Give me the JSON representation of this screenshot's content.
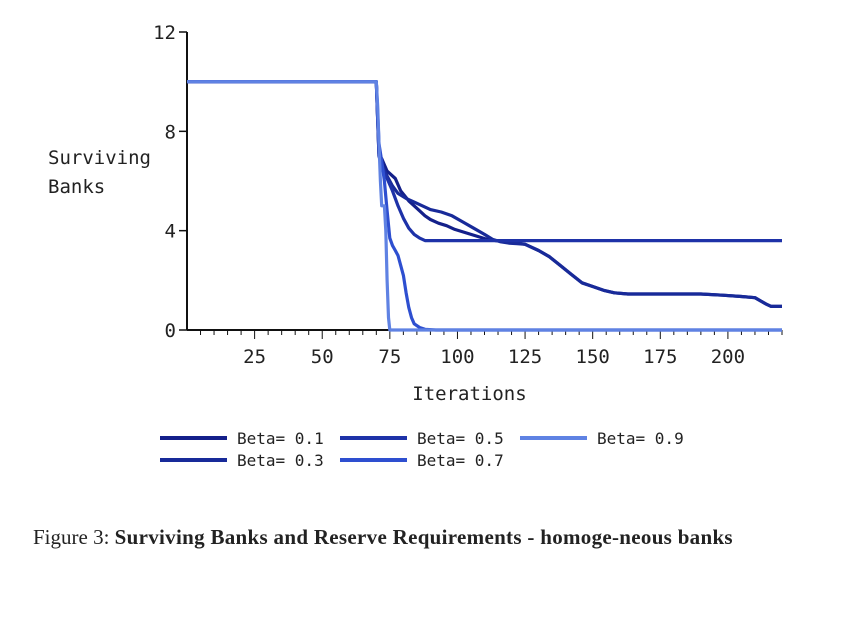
{
  "chart_data": {
    "type": "line",
    "xlabel": "Iterations",
    "ylabel_lines": [
      "Surviving",
      "Banks"
    ],
    "xlim": [
      0,
      220
    ],
    "ylim": [
      0,
      12
    ],
    "x_ticks": [
      25,
      50,
      75,
      100,
      125,
      150,
      175,
      200
    ],
    "y_ticks": [
      0,
      4,
      8,
      12
    ],
    "grid": false,
    "legend_position": "bottom",
    "series": [
      {
        "name": "Beta= 0.1",
        "color": "#14208a",
        "points": [
          [
            0,
            10
          ],
          [
            70,
            10
          ],
          [
            71,
            7
          ],
          [
            72,
            6.9
          ],
          [
            74,
            6.4
          ],
          [
            77,
            6.1
          ],
          [
            79,
            5.6
          ],
          [
            82,
            5.2
          ],
          [
            85,
            4.9
          ],
          [
            88,
            4.6
          ],
          [
            90,
            4.45
          ],
          [
            93,
            4.3
          ],
          [
            96,
            4.2
          ],
          [
            99,
            4.05
          ],
          [
            102,
            3.95
          ],
          [
            105,
            3.85
          ],
          [
            108,
            3.75
          ],
          [
            111,
            3.65
          ],
          [
            114,
            3.6
          ],
          [
            117,
            3.58
          ],
          [
            120,
            3.55
          ],
          [
            125,
            3.45
          ],
          [
            130,
            3.2
          ],
          [
            134,
            2.95
          ],
          [
            138,
            2.6
          ],
          [
            142,
            2.25
          ],
          [
            146,
            1.9
          ],
          [
            150,
            1.75
          ],
          [
            154,
            1.6
          ],
          [
            158,
            1.5
          ],
          [
            163,
            1.45
          ],
          [
            170,
            1.45
          ],
          [
            180,
            1.45
          ],
          [
            190,
            1.45
          ],
          [
            198,
            1.4
          ],
          [
            205,
            1.35
          ],
          [
            210,
            1.3
          ],
          [
            214,
            1.05
          ],
          [
            216,
            0.95
          ],
          [
            220,
            0.95
          ]
        ]
      },
      {
        "name": "Beta= 0.3",
        "color": "#182a99",
        "points": [
          [
            0,
            10
          ],
          [
            70,
            10
          ],
          [
            71,
            7.1
          ],
          [
            72,
            6.7
          ],
          [
            74,
            6.2
          ],
          [
            76,
            5.8
          ],
          [
            78,
            5.5
          ],
          [
            81,
            5.3
          ],
          [
            84,
            5.15
          ],
          [
            87,
            5.0
          ],
          [
            90,
            4.85
          ],
          [
            94,
            4.75
          ],
          [
            98,
            4.6
          ],
          [
            102,
            4.35
          ],
          [
            106,
            4.1
          ],
          [
            110,
            3.85
          ],
          [
            113,
            3.65
          ],
          [
            116,
            3.55
          ],
          [
            119,
            3.5
          ],
          [
            122,
            3.48
          ],
          [
            125,
            3.45
          ],
          [
            130,
            3.2
          ],
          [
            134,
            2.95
          ],
          [
            138,
            2.6
          ],
          [
            142,
            2.25
          ],
          [
            146,
            1.9
          ],
          [
            150,
            1.75
          ],
          [
            154,
            1.6
          ],
          [
            158,
            1.5
          ],
          [
            163,
            1.45
          ],
          [
            170,
            1.45
          ],
          [
            180,
            1.45
          ],
          [
            190,
            1.45
          ],
          [
            198,
            1.4
          ],
          [
            205,
            1.35
          ],
          [
            210,
            1.3
          ],
          [
            214,
            1.05
          ],
          [
            216,
            0.95
          ],
          [
            220,
            0.95
          ]
        ]
      },
      {
        "name": "Beta= 0.5",
        "color": "#1e32a8",
        "points": [
          [
            0,
            10
          ],
          [
            70,
            10
          ],
          [
            71,
            7.0
          ],
          [
            72,
            6.6
          ],
          [
            74,
            6.1
          ],
          [
            76,
            5.6
          ],
          [
            78,
            5.0
          ],
          [
            80,
            4.5
          ],
          [
            82,
            4.1
          ],
          [
            84,
            3.85
          ],
          [
            86,
            3.7
          ],
          [
            88,
            3.6
          ],
          [
            90,
            3.6
          ],
          [
            100,
            3.6
          ],
          [
            120,
            3.6
          ],
          [
            150,
            3.6
          ],
          [
            180,
            3.6
          ],
          [
            220,
            3.6
          ]
        ]
      },
      {
        "name": "Beta= 0.7",
        "color": "#2e4fd0",
        "points": [
          [
            0,
            10
          ],
          [
            70,
            10
          ],
          [
            71,
            7.5
          ],
          [
            72,
            6.8
          ],
          [
            73,
            6.0
          ],
          [
            74,
            4.8
          ],
          [
            75,
            3.7
          ],
          [
            76,
            3.4
          ],
          [
            77,
            3.2
          ],
          [
            78,
            3.0
          ],
          [
            79,
            2.6
          ],
          [
            80,
            2.2
          ],
          [
            81,
            1.5
          ],
          [
            82,
            0.9
          ],
          [
            83,
            0.5
          ],
          [
            84,
            0.25
          ],
          [
            86,
            0.1
          ],
          [
            88,
            0.03
          ],
          [
            92,
            0
          ],
          [
            220,
            0
          ]
        ]
      },
      {
        "name": "Beta= 0.9",
        "color": "#5f82e3",
        "points": [
          [
            0,
            10
          ],
          [
            70,
            10
          ],
          [
            70.5,
            9.0
          ],
          [
            71,
            7.5
          ],
          [
            71.5,
            6.0
          ],
          [
            72,
            5.0
          ],
          [
            73,
            5.0
          ],
          [
            73.5,
            4.0
          ],
          [
            74,
            2.0
          ],
          [
            74.5,
            0.5
          ],
          [
            75,
            0
          ],
          [
            220,
            0
          ]
        ]
      }
    ]
  },
  "caption": {
    "prefix": "Figure 3:",
    "text": "Surviving Banks and Reserve Requirements - homoge-neous banks"
  }
}
